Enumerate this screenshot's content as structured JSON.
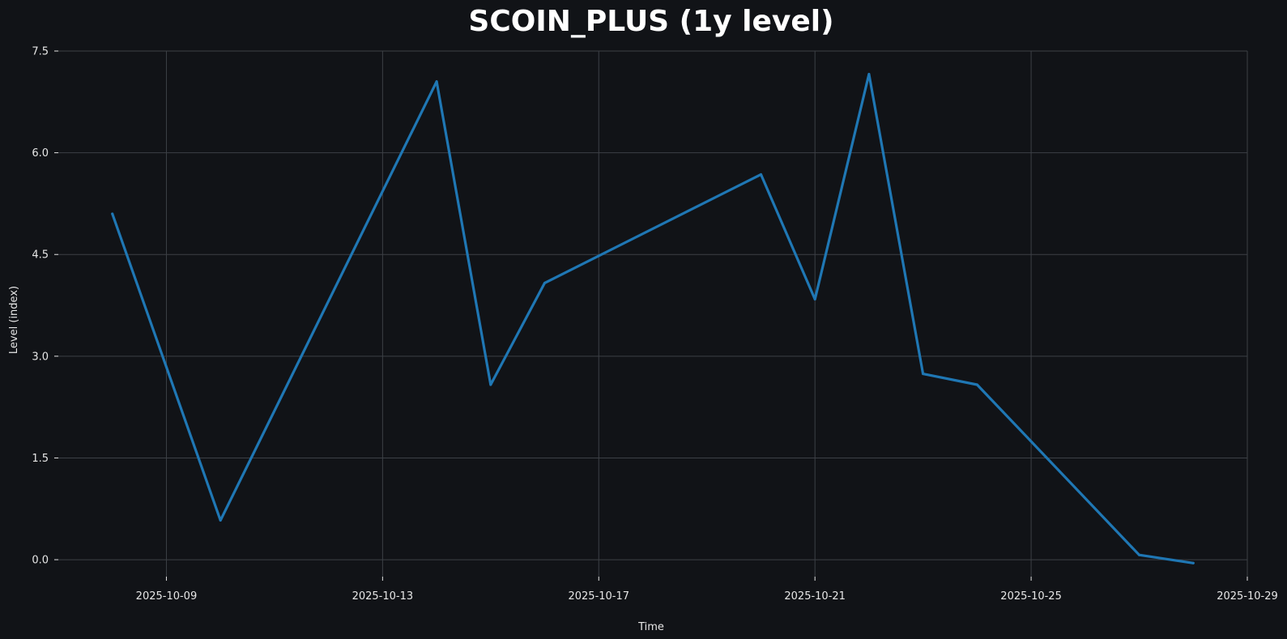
{
  "chart_data": {
    "type": "line",
    "title": "SCOIN_PLUS (1y level)",
    "xlabel": "Time",
    "ylabel": "Level (index)",
    "x_ticks": [
      "2025-10-09",
      "2025-10-13",
      "2025-10-17",
      "2025-10-21",
      "2025-10-25",
      "2025-10-29"
    ],
    "y_ticks": [
      "0.0",
      "1.5",
      "3.0",
      "4.5",
      "6.0",
      "7.5"
    ],
    "xlim": [
      "2025-10-07",
      "2025-10-29"
    ],
    "ylim": [
      -0.25,
      7.5
    ],
    "grid": true,
    "colors": {
      "background": "#111317",
      "line": "#1f77b4",
      "text": "#e6e6e6",
      "title": "#ffffff",
      "grid": "#3d4046"
    },
    "series": [
      {
        "x": [
          "2025-10-08",
          "2025-10-10",
          "2025-10-14",
          "2025-10-15",
          "2025-10-16",
          "2025-10-20",
          "2025-10-21",
          "2025-10-22",
          "2025-10-23",
          "2025-10-24",
          "2025-10-27",
          "2025-10-28"
        ],
        "values": [
          5.1,
          0.58,
          7.05,
          2.58,
          4.08,
          5.68,
          3.84,
          7.16,
          2.74,
          2.58,
          0.07,
          -0.05
        ]
      }
    ]
  }
}
